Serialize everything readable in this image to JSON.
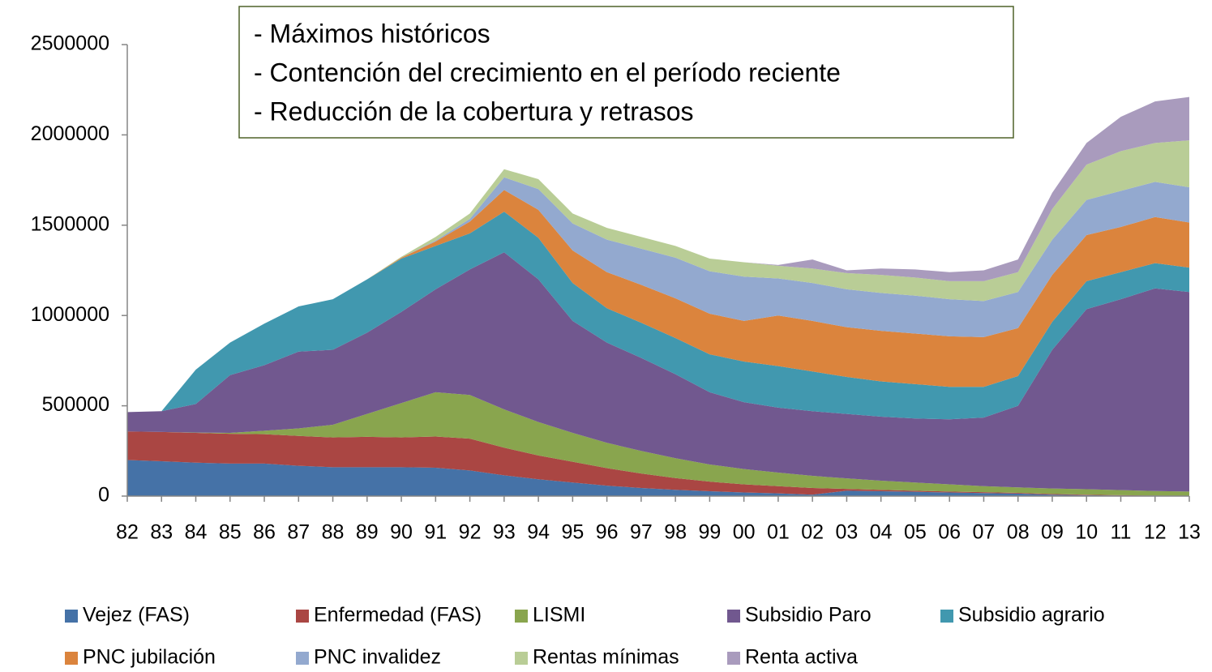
{
  "chart_data": {
    "type": "stacked_area",
    "annotations": [
      "- Máximos históricos",
      "- Contención del crecimiento en el período reciente",
      "- Reducción de la cobertura y retrasos"
    ],
    "categories": [
      "82",
      "83",
      "84",
      "85",
      "86",
      "87",
      "88",
      "89",
      "90",
      "91",
      "92",
      "93",
      "94",
      "95",
      "96",
      "97",
      "98",
      "99",
      "00",
      "01",
      "02",
      "03",
      "04",
      "05",
      "06",
      "07",
      "08",
      "09",
      "10",
      "11",
      "12",
      "13"
    ],
    "ylim": [
      0,
      2500000
    ],
    "yticks": [
      0,
      500000,
      1000000,
      1500000,
      2000000,
      2500000
    ],
    "legend": "bottom",
    "series": [
      {
        "name": "Vejez (FAS)",
        "color": "#4572a7",
        "values": [
          200000,
          193000,
          185000,
          180000,
          180000,
          168000,
          160000,
          160000,
          160000,
          157000,
          142000,
          115000,
          93000,
          75000,
          58000,
          45000,
          35000,
          27000,
          20000,
          15000,
          8000,
          30000,
          27000,
          24000,
          20000,
          17000,
          14000,
          8000,
          5000,
          3000,
          2000,
          1000
        ]
      },
      {
        "name": "Enfermedad (FAS)",
        "color": "#aa4643",
        "values": [
          158000,
          162000,
          165000,
          165000,
          163000,
          165000,
          165000,
          168000,
          165000,
          173000,
          176000,
          153000,
          132000,
          115000,
          97000,
          80000,
          65000,
          53000,
          45000,
          40000,
          37000,
          10000,
          8000,
          6000,
          5000,
          5000,
          4000,
          4000,
          3000,
          2000,
          1000,
          1000
        ]
      },
      {
        "name": "LISMI",
        "color": "#89a54e",
        "values": [
          0,
          0,
          2000,
          5000,
          19000,
          42000,
          70000,
          127000,
          190000,
          245000,
          242000,
          212000,
          185000,
          160000,
          140000,
          125000,
          110000,
          95000,
          85000,
          75000,
          67000,
          58000,
          50000,
          45000,
          40000,
          33000,
          30000,
          30000,
          30000,
          28000,
          25000,
          23000
        ]
      },
      {
        "name": "Subsidio Paro",
        "color": "#71588f",
        "values": [
          107000,
          115000,
          158000,
          320000,
          363000,
          425000,
          415000,
          450000,
          505000,
          570000,
          695000,
          870000,
          790000,
          620000,
          555000,
          515000,
          465000,
          400000,
          370000,
          360000,
          358000,
          357000,
          355000,
          355000,
          360000,
          380000,
          452000,
          768000,
          997000,
          1057000,
          1122000,
          1105000
        ]
      },
      {
        "name": "Subsidio agrario",
        "color": "#4198af",
        "values": [
          0,
          0,
          190000,
          180000,
          230000,
          250000,
          280000,
          295000,
          295000,
          240000,
          200000,
          225000,
          230000,
          210000,
          190000,
          195000,
          200000,
          210000,
          225000,
          230000,
          220000,
          205000,
          195000,
          190000,
          180000,
          170000,
          165000,
          155000,
          155000,
          150000,
          140000,
          135000
        ]
      },
      {
        "name": "PNC jubilación",
        "color": "#db843d",
        "values": [
          0,
          0,
          0,
          0,
          0,
          0,
          0,
          0,
          5000,
          25000,
          65000,
          120000,
          155000,
          180000,
          200000,
          210000,
          220000,
          225000,
          225000,
          280000,
          280000,
          275000,
          280000,
          280000,
          280000,
          275000,
          265000,
          260000,
          255000,
          250000,
          255000,
          250000
        ]
      },
      {
        "name": "PNC invalidez",
        "color": "#93a9cf",
        "values": [
          0,
          0,
          0,
          0,
          0,
          0,
          0,
          0,
          0,
          5000,
          15000,
          70000,
          115000,
          150000,
          180000,
          200000,
          225000,
          235000,
          245000,
          205000,
          210000,
          210000,
          210000,
          210000,
          205000,
          200000,
          200000,
          195000,
          195000,
          200000,
          195000,
          195000
        ]
      },
      {
        "name": "Rentas mínimas",
        "color": "#b9cd96",
        "values": [
          0,
          0,
          0,
          0,
          0,
          0,
          0,
          0,
          5000,
          20000,
          30000,
          45000,
          55000,
          55000,
          65000,
          65000,
          65000,
          70000,
          80000,
          70000,
          80000,
          90000,
          100000,
          100000,
          100000,
          110000,
          110000,
          170000,
          195000,
          220000,
          215000,
          260000
        ]
      },
      {
        "name": "Renta activa",
        "color": "#a99bbd",
        "values": [
          0,
          0,
          0,
          0,
          0,
          0,
          0,
          0,
          0,
          0,
          0,
          0,
          0,
          0,
          0,
          0,
          0,
          0,
          0,
          5000,
          50000,
          15000,
          35000,
          45000,
          50000,
          60000,
          70000,
          90000,
          120000,
          190000,
          230000,
          240000
        ]
      }
    ]
  }
}
